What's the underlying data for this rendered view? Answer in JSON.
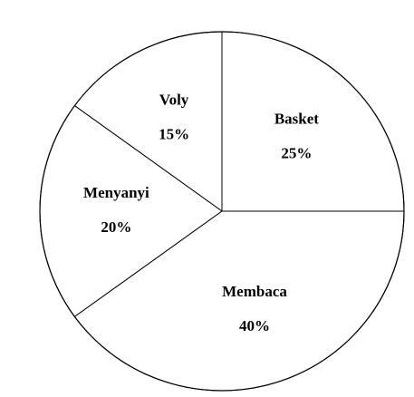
{
  "chart_data": {
    "type": "pie",
    "title": "",
    "start_angle_deg": 0,
    "direction": "counterclockwise",
    "slices": [
      {
        "label": "Basket",
        "value": 25,
        "value_label": "25%"
      },
      {
        "label": "Voly",
        "value": 15,
        "value_label": "15%"
      },
      {
        "label": "Menyanyi",
        "value": 20,
        "value_label": "20%"
      },
      {
        "label": "Membaca",
        "value": 40,
        "value_label": "40%"
      }
    ],
    "colors": {
      "fill": "#ffffff",
      "stroke": "#000000",
      "text": "#000000"
    }
  }
}
